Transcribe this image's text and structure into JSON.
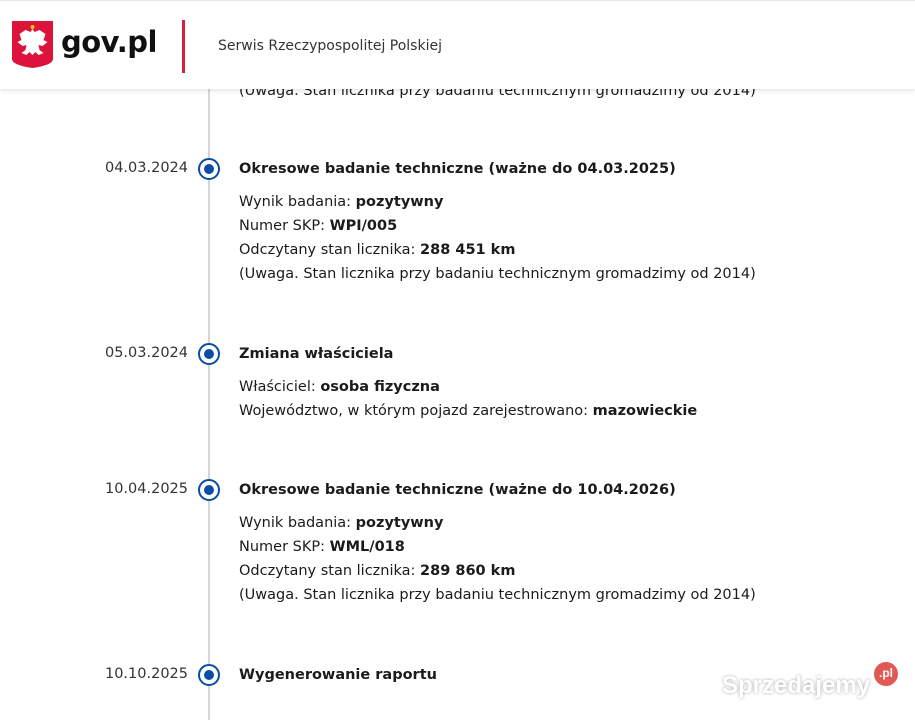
{
  "header": {
    "logo_text": "gov.pl",
    "service_name": "Serwis Rzeczypospolitej Polskiej",
    "divider_color": "#d4213d"
  },
  "partial_note": "(Uwaga. Stan licznika przy badaniu technicznym gromadzimy od 2014)",
  "timeline": [
    {
      "date": "04.03.2024",
      "title": "Okresowe badanie techniczne (ważne do 04.03.2025)",
      "lines": [
        {
          "label": "Wynik badania: ",
          "value": "pozytywny"
        },
        {
          "label": "Numer SKP: ",
          "value": "WPI/005"
        },
        {
          "label": "Odczytany stan licznika: ",
          "value": "288 451 km"
        },
        {
          "label": "(Uwaga. Stan licznika przy badaniu technicznym gromadzimy od 2014)",
          "value": ""
        }
      ]
    },
    {
      "date": "05.03.2024",
      "title": "Zmiana właściciela",
      "lines": [
        {
          "label": "Właściciel: ",
          "value": "osoba fizyczna"
        },
        {
          "label": "Województwo, w którym pojazd zarejestrowano: ",
          "value": "mazowieckie"
        }
      ]
    },
    {
      "date": "10.04.2025",
      "title": "Okresowe badanie techniczne (ważne do 10.04.2026)",
      "lines": [
        {
          "label": "Wynik badania: ",
          "value": "pozytywny"
        },
        {
          "label": "Numer SKP: ",
          "value": "WML/018"
        },
        {
          "label": "Odczytany stan licznika: ",
          "value": "289 860 km"
        },
        {
          "label": "(Uwaga. Stan licznika przy badaniu technicznym gromadzimy od 2014)",
          "value": ""
        }
      ]
    },
    {
      "date": "10.10.2025",
      "title": "Wygenerowanie raportu",
      "lines": []
    }
  ],
  "watermark": {
    "text": "Sprzedajemy",
    "badge": ".pl"
  },
  "accent_color": "#0b4da2"
}
